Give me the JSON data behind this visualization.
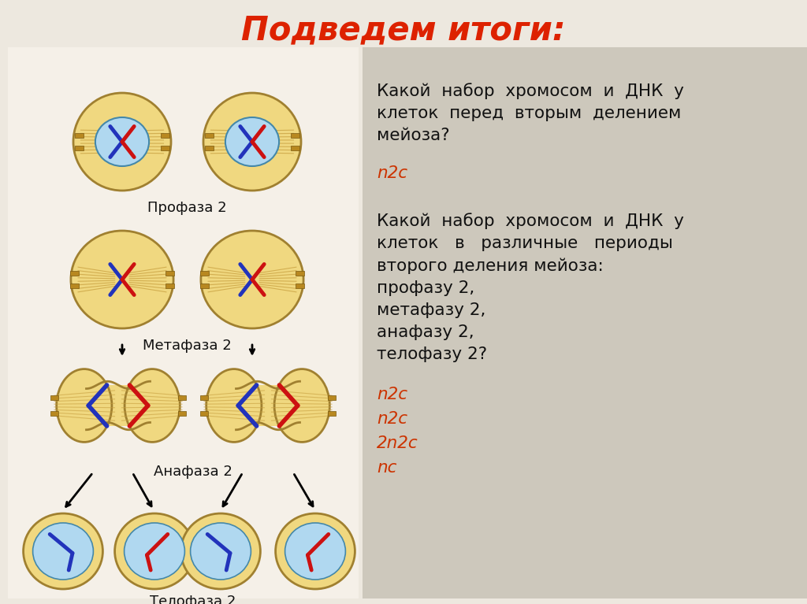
{
  "title": "Подведем итоги:",
  "title_color": "#dd2200",
  "bg_color": "#ede8df",
  "right_bg_color": "#cdc8bc",
  "q1_text": "Какой  набор  хромосом  и  ДНК  у\nклеток  перед  вторым  делением\nмейоза?",
  "q1_answer": "n2c",
  "q2_text": "Какой  набор  хромосом  и  ДНК  у\nклеток   в   различные   периоды\nвторого деления мейоза:\nпрофазу 2,\nметафазу 2,\nанафазу 2,\nтелофазу 2?",
  "q2_answers": [
    "n2c",
    "n2c",
    "2n2c",
    "nc"
  ],
  "label_profaza": "Профаза 2",
  "label_metafaza": "Метафаза 2",
  "label_anafaza": "Анафаза 2",
  "label_telofaza": "Телофаза 2",
  "answer_color": "#cc3300",
  "text_color": "#111111",
  "cell_fill": "#f0d880",
  "cell_edge": "#a08030",
  "nucleus_fill": "#b0d8f0",
  "nucleus_edge": "#4488aa",
  "spindle_color": "#c8a040",
  "chr_blue": "#2233bb",
  "chr_red": "#cc1111"
}
